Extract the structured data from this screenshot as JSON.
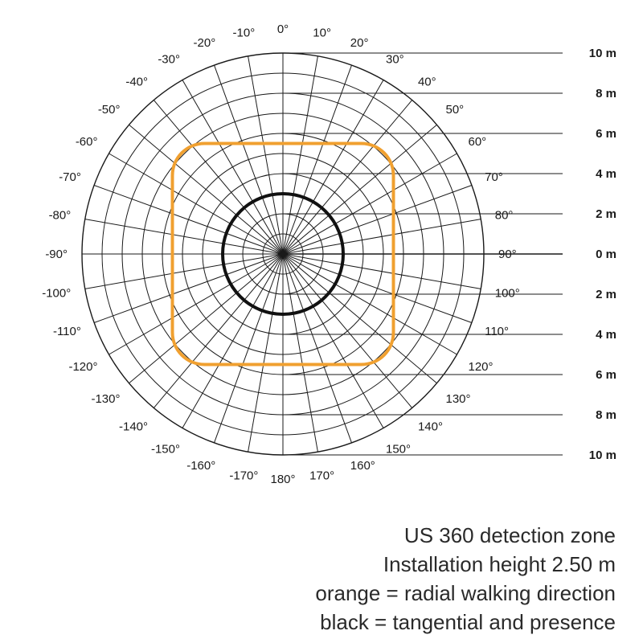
{
  "diagram": {
    "type": "polar detection zone",
    "angle_labels": [
      "0°",
      "10°",
      "20°",
      "30°",
      "40°",
      "50°",
      "60°",
      "70°",
      "80°",
      "90°",
      "100°",
      "110°",
      "120°",
      "130°",
      "140°",
      "150°",
      "160°",
      "170°",
      "180°",
      "-170°",
      "-160°",
      "-150°",
      "-140°",
      "-130°",
      "-120°",
      "-110°",
      "-100°",
      "-90°",
      "-80°",
      "-70°",
      "-60°",
      "-50°",
      "-40°",
      "-30°",
      "-20°",
      "-10°"
    ],
    "distance_labels": [
      "10 m",
      "8 m",
      "6 m",
      "4 m",
      "2 m",
      "0 m",
      "2 m",
      "4 m",
      "6 m",
      "8 m",
      "10 m"
    ],
    "max_distance_m": 10,
    "ring_step_m": 1,
    "spoke_step_deg": 10,
    "series": [
      {
        "label": "orange",
        "color": "#f0a030",
        "shape": "rounded-square",
        "half_width_m": 5.5,
        "corner_radius_m": 1.6
      },
      {
        "label": "black",
        "color": "#111111",
        "shape": "circle",
        "radius_m": 3.0
      }
    ]
  },
  "caption": {
    "line1": "US 360 detection zone",
    "line2": "Installation height 2.50 m",
    "line3": "orange = radial walking direction",
    "line4": "black = tangential and presence"
  }
}
